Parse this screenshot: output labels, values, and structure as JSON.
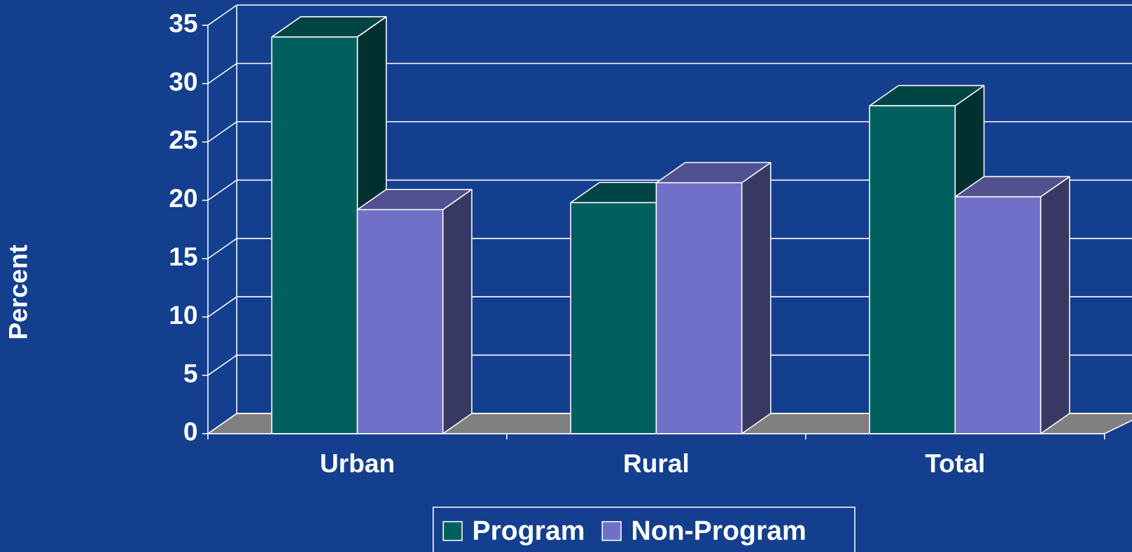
{
  "chart_data": {
    "type": "bar3d",
    "categories": [
      "Urban",
      "Rural",
      "Total"
    ],
    "series": [
      {
        "name": "Program",
        "color": "#006060",
        "values": [
          34,
          19.8,
          28.1
        ]
      },
      {
        "name": "Non-Program",
        "color": "#7070c8",
        "values": [
          19.2,
          21.5,
          20.3
        ]
      }
    ],
    "ylabel": "Percent",
    "ylim": [
      0,
      35
    ],
    "yticks": [
      0,
      5,
      10,
      15,
      20,
      25,
      30,
      35
    ],
    "grid": true,
    "legend": "bottom"
  }
}
